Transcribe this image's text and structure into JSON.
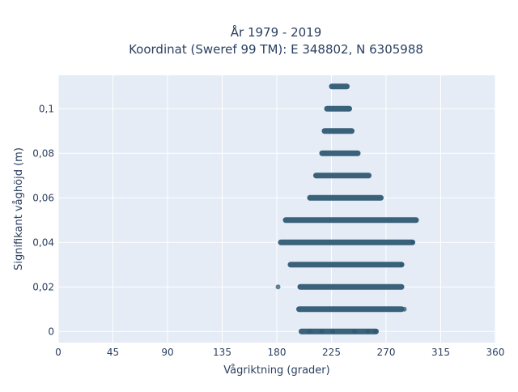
{
  "chart_data": {
    "type": "scatter",
    "title": [
      "År 1979 - 2019",
      "Koordinat (Sweref 99 TM): E 348802, N 6305988"
    ],
    "xlabel": "Vågriktning (grader)",
    "ylabel": "Signifikant våghöjd (m)",
    "xlim": [
      0,
      360
    ],
    "ylim": [
      -0.005,
      0.115
    ],
    "x_ticks": [
      0,
      45,
      90,
      135,
      180,
      225,
      270,
      315,
      360
    ],
    "x_tick_labels": [
      "0",
      "45",
      "90",
      "135",
      "180",
      "225",
      "270",
      "315",
      "360"
    ],
    "y_ticks": [
      0,
      0.02,
      0.04,
      0.06,
      0.08,
      0.1
    ],
    "y_tick_labels": [
      "0",
      "0,02",
      "0,04",
      "0,06",
      "0,08",
      "0,1"
    ],
    "grid": true,
    "plot_background": "#e5ecf6",
    "marker_color": "#2f5a73",
    "bands": [
      {
        "y": 0.0,
        "x_min": 200,
        "x_max": 262
      },
      {
        "y": 0.01,
        "x_min": 198,
        "x_max": 283
      },
      {
        "y": 0.02,
        "x_min": 199,
        "x_max": 283
      },
      {
        "y": 0.03,
        "x_min": 191,
        "x_max": 283
      },
      {
        "y": 0.04,
        "x_min": 183,
        "x_max": 292
      },
      {
        "y": 0.05,
        "x_min": 187,
        "x_max": 295
      },
      {
        "y": 0.06,
        "x_min": 207,
        "x_max": 266
      },
      {
        "y": 0.07,
        "x_min": 212,
        "x_max": 256
      },
      {
        "y": 0.08,
        "x_min": 217,
        "x_max": 247
      },
      {
        "y": 0.09,
        "x_min": 219,
        "x_max": 242
      },
      {
        "y": 0.1,
        "x_min": 221,
        "x_max": 240
      },
      {
        "y": 0.11,
        "x_min": 225,
        "x_max": 238
      }
    ],
    "points": [
      {
        "x": 181,
        "y": 0.02
      },
      {
        "x": 207,
        "y": 0.0
      },
      {
        "x": 217,
        "y": 0.0
      },
      {
        "x": 226,
        "y": 0.0
      },
      {
        "x": 244,
        "y": 0.0
      },
      {
        "x": 255,
        "y": 0.0
      },
      {
        "x": 261,
        "y": 0.0
      },
      {
        "x": 283,
        "y": 0.03
      },
      {
        "x": 292,
        "y": 0.04
      },
      {
        "x": 285,
        "y": 0.01
      }
    ]
  }
}
